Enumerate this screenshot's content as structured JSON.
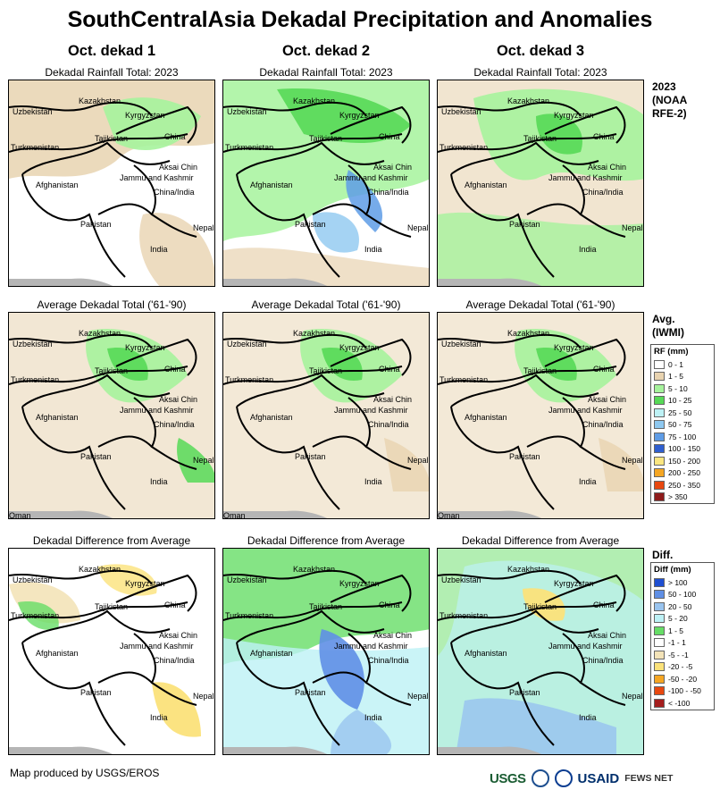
{
  "title": "SouthCentralAsia Dekadal Precipitation and Anomalies",
  "columns": [
    "Oct. dekad 1",
    "Oct. dekad 2",
    "Oct. dekad 3"
  ],
  "row_subtitles": {
    "total": "Dekadal Rainfall Total: 2023",
    "average": "Average Dekadal Total ('61-'90)",
    "difference": "Dekadal Difference from Average"
  },
  "map_labels": {
    "kazakhstan": "Kazakhstan",
    "uzbekistan": "Uzbekistan",
    "kyrgyzstan": "Kyrgyzstan",
    "turkmenistan": "Turkmenistan",
    "tajikistan": "Tajikistan",
    "china": "China",
    "aksai_chin": "Aksai Chin",
    "jammu_kashmir": "Jammu and Kashmir",
    "china_india": "China/India",
    "afghanistan": "Afghanistan",
    "pakistan": "Pakistan",
    "nepal": "Nepal",
    "india": "India",
    "oman": "Oman"
  },
  "side_titles": {
    "total": [
      "2023",
      "(NOAA",
      "RFE-2)"
    ],
    "average": [
      "Avg.",
      "(IWMI)"
    ],
    "difference": [
      "Diff."
    ]
  },
  "rf_legend": {
    "title": "RF (mm)",
    "items": [
      {
        "label": "0 - 1",
        "color": "#ffffff"
      },
      {
        "label": "1 - 5",
        "color": "#e8d3b0"
      },
      {
        "label": "5 - 10",
        "color": "#a6f39c"
      },
      {
        "label": "10 - 25",
        "color": "#57d957"
      },
      {
        "label": "25 - 50",
        "color": "#bdf1f5"
      },
      {
        "label": "50 - 75",
        "color": "#8ec8f0"
      },
      {
        "label": "75 - 100",
        "color": "#5e9ce6"
      },
      {
        "label": "100 - 150",
        "color": "#2f5fd0"
      },
      {
        "label": "150 - 200",
        "color": "#fbe680"
      },
      {
        "label": "200 - 250",
        "color": "#f5a623"
      },
      {
        "label": "250 - 350",
        "color": "#e84810"
      },
      {
        "label": "> 350",
        "color": "#8e1b1b"
      }
    ]
  },
  "diff_legend": {
    "title": "Diff (mm)",
    "items": [
      {
        "label": "> 100",
        "color": "#1f4fd1"
      },
      {
        "label": "50 - 100",
        "color": "#5f8fe5"
      },
      {
        "label": "20 - 50",
        "color": "#99c4ef"
      },
      {
        "label": "5 - 20",
        "color": "#bdf1f5"
      },
      {
        "label": "1 - 5",
        "color": "#66dd66"
      },
      {
        "label": "-1 - 1",
        "color": "#ffffff"
      },
      {
        "label": "-5 - -1",
        "color": "#f3e3b8"
      },
      {
        "label": "-20 - -5",
        "color": "#fbe27a"
      },
      {
        "label": "-50 - -20",
        "color": "#f5a623"
      },
      {
        "label": "-100 - -50",
        "color": "#e84810"
      },
      {
        "label": "< -100",
        "color": "#a41d1d"
      }
    ]
  },
  "credit": "Map produced by USGS/EROS",
  "logos": {
    "usgs": "USGS",
    "usaid": "USAID",
    "fews": "FEWS NET"
  }
}
